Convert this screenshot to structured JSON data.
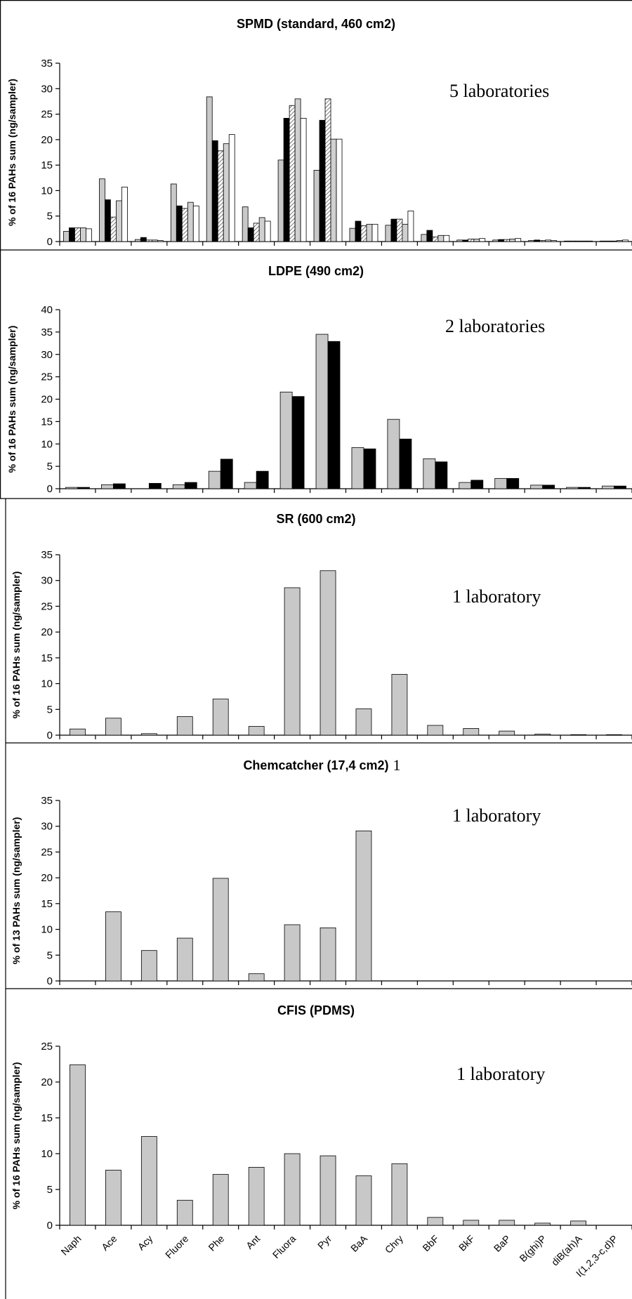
{
  "categories": [
    "Naph",
    "Ace",
    "Acy",
    "Fluore",
    "Phe",
    "Ant",
    "Fluora",
    "Pyr",
    "BaA",
    "Chry",
    "BbF",
    "BkF",
    "BaP",
    "B(ghi)P",
    "diB(ah)A",
    "I(1,2,3-c,d)P"
  ],
  "series_colors": [
    "#c8c8c8",
    "#000000",
    "#e6e6e6",
    "#d0d0d0",
    "#ffffff"
  ],
  "chart_data": [
    {
      "type": "bar",
      "title": "SPMD (standard, 460 cm2)",
      "annotation": "5 laboratories",
      "ylabel": "% of 16 PAHs sum (ng/sampler)",
      "ylim": [
        0,
        35
      ],
      "yticks": [
        0,
        5,
        10,
        15,
        20,
        25,
        30,
        35
      ],
      "series": [
        {
          "values": [
            2.0,
            12.3,
            0.4,
            11.3,
            28.4,
            6.8,
            16.0,
            14.0,
            2.6,
            3.2,
            1.4,
            0.3,
            0.3,
            0.2,
            0.1,
            0.1
          ]
        },
        {
          "values": [
            2.7,
            8.2,
            0.8,
            7.0,
            19.8,
            2.7,
            24.2,
            23.8,
            4.0,
            4.4,
            2.2,
            0.3,
            0.4,
            0.3,
            0.1,
            0.1
          ]
        },
        {
          "values": [
            2.7,
            4.8,
            0.3,
            6.5,
            17.8,
            3.6,
            26.7,
            28.0,
            3.1,
            4.4,
            0.9,
            0.5,
            0.4,
            0.2,
            0.1,
            0.1
          ]
        },
        {
          "values": [
            2.7,
            8.0,
            0.3,
            7.7,
            19.2,
            4.7,
            28.0,
            20.1,
            3.4,
            3.4,
            1.2,
            0.5,
            0.5,
            0.3,
            0.1,
            0.2
          ]
        },
        {
          "values": [
            2.5,
            10.7,
            0.2,
            7.0,
            21.0,
            4.0,
            24.2,
            20.1,
            3.4,
            6.0,
            1.2,
            0.6,
            0.6,
            0.2,
            0.1,
            0.3
          ]
        }
      ]
    },
    {
      "type": "bar",
      "title": "LDPE (490 cm2)",
      "annotation": "2 laboratories",
      "ylabel": "% of 16 PAHs sum (ng/sampler)",
      "ylim": [
        0,
        40
      ],
      "yticks": [
        0,
        5,
        10,
        15,
        20,
        25,
        30,
        35,
        40
      ],
      "series": [
        {
          "values": [
            0.3,
            0.9,
            0.0,
            0.9,
            3.9,
            1.4,
            21.6,
            34.5,
            9.2,
            15.5,
            6.7,
            1.4,
            2.3,
            0.8,
            0.3,
            0.6
          ]
        },
        {
          "values": [
            0.3,
            1.1,
            1.2,
            1.4,
            6.6,
            3.9,
            20.6,
            32.9,
            8.9,
            11.1,
            6.0,
            1.9,
            2.3,
            0.8,
            0.3,
            0.6
          ]
        }
      ]
    },
    {
      "type": "bar",
      "title": "SR (600 cm2)",
      "annotation": "1 laboratory",
      "ylabel": "% of 16 PAHs sum (ng/sampler)",
      "ylim": [
        0,
        35
      ],
      "yticks": [
        0,
        5,
        10,
        15,
        20,
        25,
        30,
        35
      ],
      "series": [
        {
          "values": [
            1.2,
            3.3,
            0.3,
            3.6,
            7.0,
            1.7,
            28.6,
            31.9,
            5.1,
            11.8,
            1.9,
            1.3,
            0.8,
            0.2,
            0.1,
            0.1
          ]
        }
      ]
    },
    {
      "type": "bar",
      "title": "Chemcatcher (17,4 cm2)",
      "title_suffix": "1",
      "annotation": "1 laboratory",
      "ylabel": "% of 13 PAHs sum (ng/sampler)",
      "ylim": [
        0,
        35
      ],
      "yticks": [
        0,
        5,
        10,
        15,
        20,
        25,
        30,
        35
      ],
      "series": [
        {
          "values": [
            0,
            13.4,
            5.9,
            8.3,
            19.9,
            1.4,
            10.9,
            10.3,
            29.1,
            0,
            0,
            0,
            0,
            0,
            0,
            0
          ]
        }
      ]
    },
    {
      "type": "bar",
      "title": "CFIS (PDMS)",
      "annotation": "1 laboratory",
      "ylabel": "% of 16 PAHs sum (ng/sampler)",
      "ylim": [
        0,
        25
      ],
      "yticks": [
        0,
        5,
        10,
        15,
        20,
        25
      ],
      "series": [
        {
          "values": [
            22.4,
            7.7,
            12.4,
            3.5,
            7.1,
            8.1,
            10.0,
            9.7,
            6.9,
            8.6,
            1.1,
            0.7,
            0.7,
            0.3,
            0.6,
            0.0
          ]
        }
      ]
    }
  ]
}
